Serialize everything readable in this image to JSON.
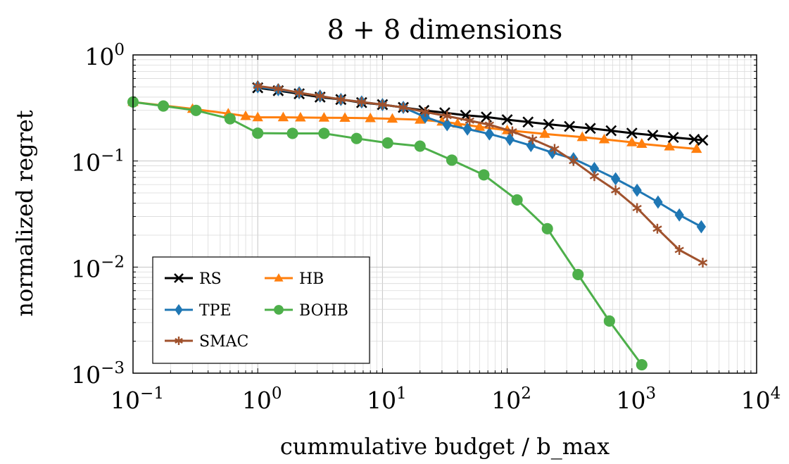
{
  "chart_data": {
    "type": "line",
    "title": "8 + 8 dimensions",
    "xlabel": "cummulative budget / b_max",
    "ylabel": "normalized regret",
    "xscale": "log",
    "yscale": "log",
    "xlim": [
      0.1,
      10000
    ],
    "ylim": [
      0.001,
      1
    ],
    "grid": true,
    "legend_position": "bottom-left",
    "x_ticks": [
      {
        "value": 0.1,
        "base": "10",
        "exp": "−1"
      },
      {
        "value": 1,
        "base": "10",
        "exp": "0"
      },
      {
        "value": 10,
        "base": "10",
        "exp": "1"
      },
      {
        "value": 100,
        "base": "10",
        "exp": "2"
      },
      {
        "value": 1000,
        "base": "10",
        "exp": "3"
      },
      {
        "value": 10000,
        "base": "10",
        "exp": "4"
      }
    ],
    "y_ticks": [
      {
        "value": 1,
        "base": "10",
        "exp": "0"
      },
      {
        "value": 0.1,
        "base": "10",
        "exp": "−1"
      },
      {
        "value": 0.01,
        "base": "10",
        "exp": "−2"
      },
      {
        "value": 0.001,
        "base": "10",
        "exp": "−3"
      }
    ],
    "series": [
      {
        "name": "RS",
        "color": "#000000",
        "marker": "cross",
        "x": [
          1,
          1.46,
          2.15,
          3.16,
          4.64,
          6.81,
          10,
          14.7,
          21.5,
          31.6,
          46.4,
          68.1,
          100,
          147,
          215,
          316,
          464,
          681,
          1000,
          1470,
          2150,
          3160,
          3700
        ],
        "y": [
          0.49,
          0.46,
          0.43,
          0.4,
          0.38,
          0.355,
          0.34,
          0.32,
          0.3,
          0.285,
          0.27,
          0.26,
          0.245,
          0.233,
          0.222,
          0.212,
          0.203,
          0.193,
          0.183,
          0.175,
          0.167,
          0.16,
          0.157
        ]
      },
      {
        "name": "HB",
        "color": "#ff7f0e",
        "marker": "triangle",
        "x": [
          0.1,
          0.3,
          0.58,
          0.8,
          1,
          1.6,
          2.2,
          3.4,
          5,
          8,
          12,
          20,
          30,
          40,
          60,
          100,
          200,
          400,
          600,
          1000,
          1200,
          2000,
          3300
        ],
        "y": [
          0.36,
          0.31,
          0.28,
          0.265,
          0.258,
          0.258,
          0.257,
          0.256,
          0.255,
          0.253,
          0.25,
          0.245,
          0.235,
          0.225,
          0.21,
          0.195,
          0.18,
          0.168,
          0.16,
          0.15,
          0.145,
          0.137,
          0.13
        ]
      },
      {
        "name": "TPE",
        "color": "#1f77b4",
        "marker": "diamond",
        "x": [
          1,
          1.46,
          2.15,
          3.16,
          4.64,
          6.81,
          10,
          14.7,
          22,
          33,
          48,
          72,
          105,
          155,
          230,
          340,
          500,
          740,
          1100,
          1620,
          2400,
          3600
        ],
        "y": [
          0.5,
          0.47,
          0.44,
          0.41,
          0.38,
          0.36,
          0.34,
          0.32,
          0.26,
          0.22,
          0.2,
          0.18,
          0.16,
          0.14,
          0.12,
          0.105,
          0.085,
          0.068,
          0.053,
          0.041,
          0.031,
          0.024
        ]
      },
      {
        "name": "SMAC",
        "color": "#a0522d",
        "marker": "star",
        "x": [
          1,
          1.46,
          2.15,
          3.16,
          4.64,
          6.81,
          10,
          14.7,
          22,
          33,
          50,
          72,
          110,
          160,
          240,
          340,
          500,
          740,
          1100,
          1600,
          2400,
          3700
        ],
        "y": [
          0.51,
          0.48,
          0.44,
          0.41,
          0.38,
          0.36,
          0.34,
          0.32,
          0.29,
          0.265,
          0.24,
          0.22,
          0.19,
          0.16,
          0.13,
          0.1,
          0.072,
          0.053,
          0.036,
          0.023,
          0.0145,
          0.011
        ]
      },
      {
        "name": "BOHB",
        "color": "#4daf4a",
        "marker": "circle",
        "x": [
          0.1,
          0.175,
          0.32,
          0.6,
          1,
          1.9,
          3.4,
          6.2,
          11,
          20,
          36,
          65,
          120,
          210,
          370,
          660,
          1200
        ],
        "y": [
          0.36,
          0.33,
          0.3,
          0.25,
          0.183,
          0.182,
          0.182,
          0.163,
          0.148,
          0.138,
          0.102,
          0.074,
          0.043,
          0.023,
          0.0085,
          0.0031,
          0.0012
        ]
      }
    ]
  }
}
